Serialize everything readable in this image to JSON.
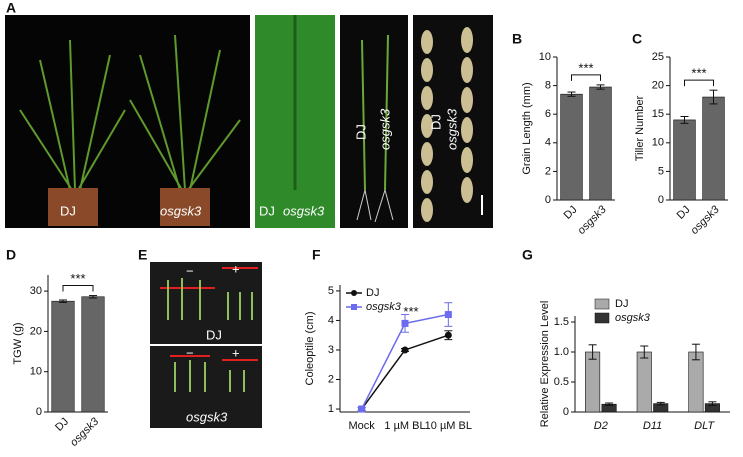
{
  "panels": [
    "A",
    "B",
    "C",
    "D",
    "E",
    "F",
    "G"
  ],
  "photo_labels": [
    "DJ",
    "osgsk3",
    "DJ",
    "osgsk3",
    "DJ",
    "osgsk3",
    "DJ",
    "osgsk3",
    "−",
    "+",
    "DJ",
    "−",
    "+",
    "osgsk3"
  ],
  "chart_data": [
    {
      "type": "bar",
      "ylabel": "Grain Length (mm)",
      "categories": [
        "DJ",
        "osgsk3"
      ],
      "values": [
        7.4,
        7.9
      ],
      "errors": [
        0.15,
        0.15
      ],
      "color": "#666666",
      "ylim": [
        0,
        10
      ],
      "yticks": [
        0,
        2,
        4,
        6,
        8,
        10
      ],
      "annotation": "***"
    },
    {
      "type": "bar",
      "ylabel": "Tiller Number",
      "categories": [
        "DJ",
        "osgsk3"
      ],
      "values": [
        14,
        18
      ],
      "errors": [
        0.6,
        1.2
      ],
      "color": "#666666",
      "ylim": [
        0,
        25
      ],
      "yticks": [
        0,
        5,
        10,
        15,
        20,
        25
      ],
      "annotation": "***"
    },
    {
      "type": "bar",
      "ylabel": "TGW (g)",
      "categories": [
        "DJ",
        "osgsk3"
      ],
      "values": [
        27.5,
        28.6
      ],
      "errors": [
        0.3,
        0.3
      ],
      "color": "#666666",
      "ylim": [
        0,
        34
      ],
      "yticks": [
        0,
        10,
        20,
        30
      ],
      "annotation": "***"
    },
    {
      "type": "line",
      "ylabel": "Coleoptile (cm)",
      "categories": [
        "Mock",
        "1 µM BL",
        "10 µM BL"
      ],
      "series": [
        {
          "name": "DJ",
          "color": "#111111",
          "marker": "circle",
          "values": [
            1.0,
            3.0,
            3.5
          ],
          "errors": [
            0.05,
            0.05,
            0.15
          ]
        },
        {
          "name": "osgsk3",
          "color": "#6b6bf0",
          "marker": "square",
          "values": [
            1.0,
            3.9,
            4.2
          ],
          "errors": [
            0.05,
            0.3,
            0.4
          ]
        }
      ],
      "ylim": [
        0.9,
        5.2
      ],
      "yticks": [
        1,
        2,
        3,
        4,
        5
      ],
      "annotation": "***",
      "legend": "upper left"
    },
    {
      "type": "groupbar",
      "ylabel": "Relative Expression Level",
      "categories": [
        "D2",
        "D11",
        "DLT"
      ],
      "series": [
        {
          "name": "DJ",
          "color": "#aaaaaa",
          "values": [
            1.0,
            1.0,
            1.0
          ],
          "errors": [
            0.12,
            0.1,
            0.13
          ]
        },
        {
          "name": "osgsk3",
          "color": "#333333",
          "values": [
            0.13,
            0.14,
            0.14
          ],
          "errors": [
            0.02,
            0.02,
            0.03
          ]
        }
      ],
      "ylim": [
        0,
        1.6
      ],
      "yticks": [
        0,
        0.5,
        {
          "value": 1,
          "label": "1.0"
        },
        1.5
      ],
      "legend": "upper center"
    }
  ]
}
